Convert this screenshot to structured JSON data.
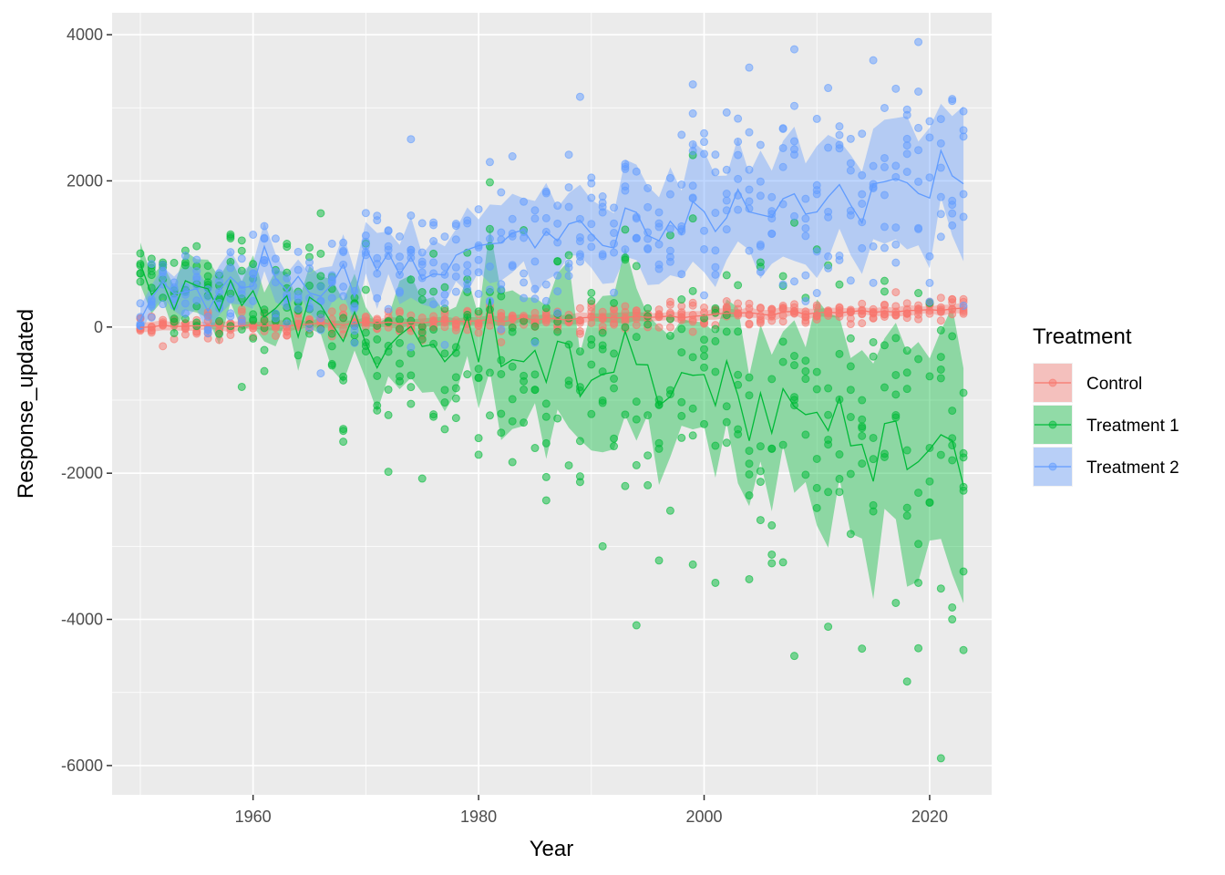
{
  "chart_data": {
    "type": "scatter",
    "xlabel": "Year",
    "ylabel": "Response_updated",
    "xlim": [
      1947.5,
      2025.5
    ],
    "ylim": [
      -6400,
      4300
    ],
    "x_ticks": [
      1960,
      1980,
      2000,
      2020
    ],
    "y_ticks": [
      -6000,
      -4000,
      -2000,
      0,
      2000,
      4000
    ],
    "grid": true,
    "legend": {
      "title": "Treatment",
      "position": "right"
    },
    "year_range": [
      1950,
      2023
    ],
    "points_per_year": 6,
    "series": [
      {
        "name": "Control",
        "color": "#F8766D",
        "mean_start": 0,
        "mean_end": 250,
        "band_halfwidth": 60,
        "point_spread": 110,
        "noise": 15
      },
      {
        "name": "Treatment 1",
        "color": "#00BA38",
        "mean_start": 450,
        "mean_end": -1700,
        "band_halfwidth_start": 250,
        "band_halfwidth_end": 1400,
        "point_spread_start": 400,
        "point_spread_end": 1700,
        "noise": 280
      },
      {
        "name": "Treatment 2",
        "color": "#619CFF",
        "mean_start": 400,
        "mean_end": 2100,
        "band_halfwidth_start": 250,
        "band_halfwidth_end": 800,
        "point_spread_start": 350,
        "point_spread_end": 1000,
        "noise": 200
      }
    ],
    "outliers": [
      {
        "series": "Treatment 1",
        "x": 2021,
        "y": -5900
      },
      {
        "series": "Treatment 1",
        "x": 2018,
        "y": -4850
      },
      {
        "series": "Treatment 1",
        "x": 2008,
        "y": -4500
      },
      {
        "series": "Treatment 1",
        "x": 2023,
        "y": -4420
      },
      {
        "series": "Treatment 1",
        "x": 2014,
        "y": -4400
      },
      {
        "series": "Treatment 1",
        "x": 2011,
        "y": -4100
      },
      {
        "series": "Treatment 1",
        "x": 2022,
        "y": -4000
      },
      {
        "series": "Treatment 1",
        "x": 2001,
        "y": -3500
      },
      {
        "series": "Treatment 1",
        "x": 2004,
        "y": -3450
      },
      {
        "series": "Treatment 1",
        "x": 1991,
        "y": -3000
      },
      {
        "series": "Treatment 1",
        "x": 1999,
        "y": -3250
      },
      {
        "series": "Treatment 2",
        "x": 2019,
        "y": 3900
      },
      {
        "series": "Treatment 2",
        "x": 2008,
        "y": 3800
      },
      {
        "series": "Treatment 2",
        "x": 2015,
        "y": 3650
      },
      {
        "series": "Treatment 2",
        "x": 2004,
        "y": 3550
      },
      {
        "series": "Treatment 2",
        "x": 1999,
        "y": 3320
      },
      {
        "series": "Treatment 2",
        "x": 1989,
        "y": 3150
      },
      {
        "series": "Treatment 2",
        "x": 1974,
        "y": 2570
      },
      {
        "series": "Treatment 1",
        "x": 1981,
        "y": 1980
      },
      {
        "series": "Treatment 1",
        "x": 1972,
        "y": -1980
      }
    ]
  }
}
